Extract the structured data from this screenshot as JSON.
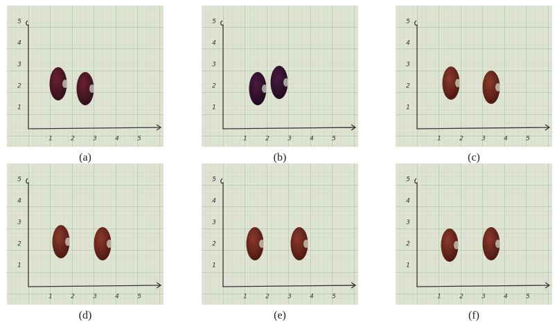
{
  "panels": [
    {
      "caption": "(a)"
    },
    {
      "caption": "(b)"
    },
    {
      "caption": "(c)"
    },
    {
      "caption": "(d)"
    },
    {
      "caption": "(e)"
    },
    {
      "caption": "(f)"
    }
  ],
  "axis_labels": {
    "x": [
      "1",
      "2",
      "3",
      "4",
      "5"
    ],
    "y": [
      "1",
      "2",
      "3",
      "4",
      "5"
    ]
  }
}
